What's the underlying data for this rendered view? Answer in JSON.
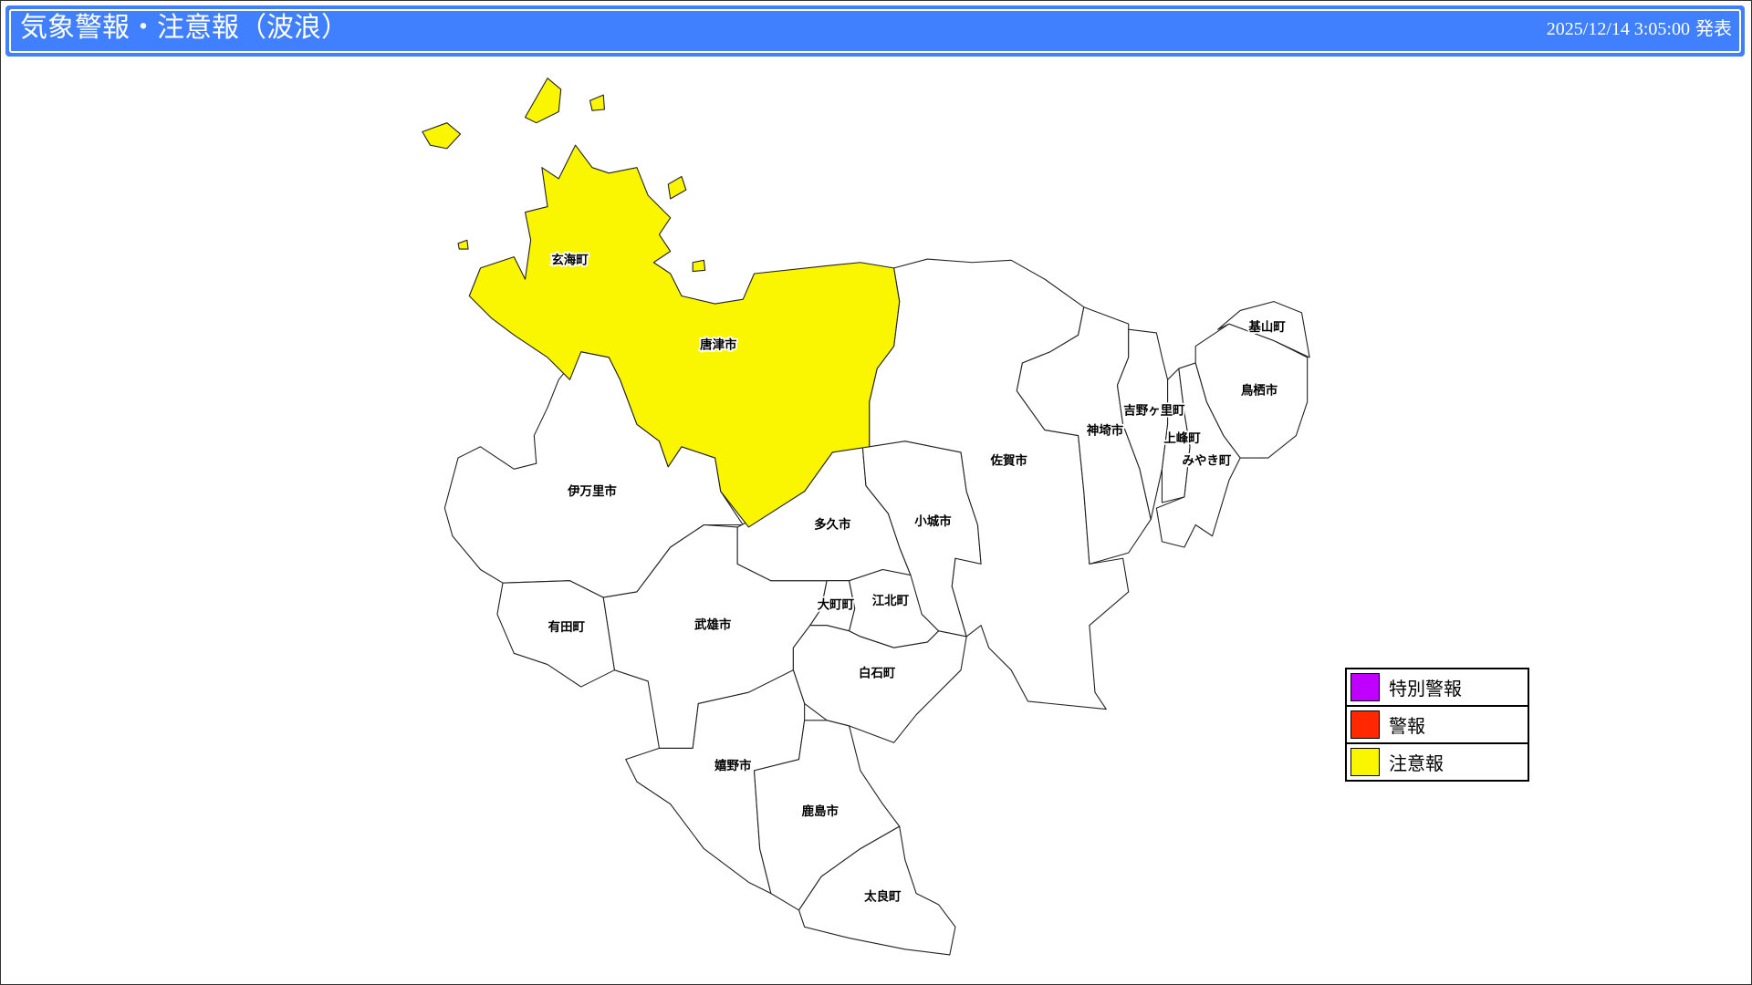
{
  "header": {
    "title": "気象警報・注意報（波浪）",
    "issued_datetime": "2025/12/14 3:05:00",
    "issued_suffix": "発表",
    "background_color": "#4080ff"
  },
  "legend": [
    {
      "label": "特別警報",
      "color": "#c000ff"
    },
    {
      "label": "警報",
      "color": "#ff2800"
    },
    {
      "label": "注意報",
      "color": "#faf500"
    }
  ],
  "map": {
    "regions": [
      {
        "id": "karatsu",
        "name": "唐津市",
        "status": "注意報"
      },
      {
        "id": "genkai",
        "name": "玄海町",
        "status": "注意報"
      },
      {
        "id": "imari",
        "name": "伊万里市",
        "status": "none"
      },
      {
        "id": "arita",
        "name": "有田町",
        "status": "none"
      },
      {
        "id": "takeo",
        "name": "武雄市",
        "status": "none"
      },
      {
        "id": "taku",
        "name": "多久市",
        "status": "none"
      },
      {
        "id": "ogi",
        "name": "小城市",
        "status": "none"
      },
      {
        "id": "omachi",
        "name": "大町町",
        "status": "none"
      },
      {
        "id": "kohoku",
        "name": "江北町",
        "status": "none"
      },
      {
        "id": "shiroishi",
        "name": "白石町",
        "status": "none"
      },
      {
        "id": "ureshino",
        "name": "嬉野市",
        "status": "none"
      },
      {
        "id": "kashima",
        "name": "鹿島市",
        "status": "none"
      },
      {
        "id": "tara",
        "name": "太良町",
        "status": "none"
      },
      {
        "id": "saga",
        "name": "佐賀市",
        "status": "none"
      },
      {
        "id": "kanzaki",
        "name": "神埼市",
        "status": "none"
      },
      {
        "id": "yoshinogari",
        "name": "吉野ヶ里町",
        "status": "none"
      },
      {
        "id": "kamimine",
        "name": "上峰町",
        "status": "none"
      },
      {
        "id": "miyaki",
        "name": "みやき町",
        "status": "none"
      },
      {
        "id": "tosu",
        "name": "鳥栖市",
        "status": "none"
      },
      {
        "id": "kiyama",
        "name": "基山町",
        "status": "none"
      }
    ]
  }
}
